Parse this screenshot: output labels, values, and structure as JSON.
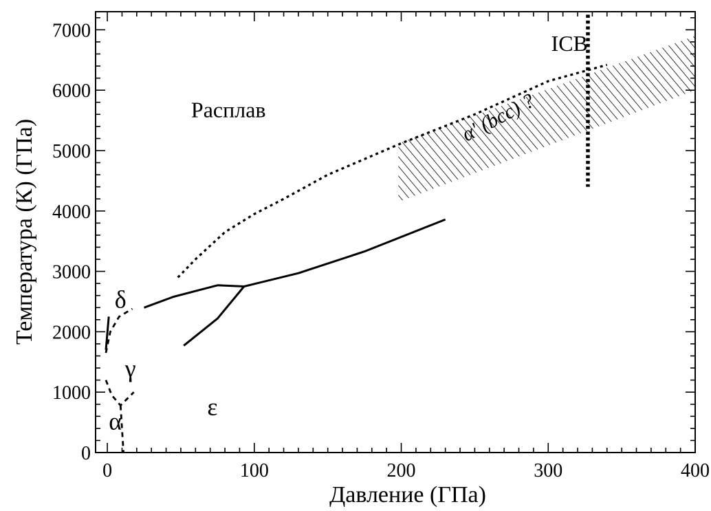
{
  "chart_data": {
    "type": "line",
    "xlabel": "Давление (ГПа)",
    "ylabel": "Температура (К) (ГПа)",
    "xlim": [
      -8,
      400
    ],
    "ylim": [
      0,
      7300
    ],
    "x_major_ticks": [
      0,
      100,
      200,
      300,
      400
    ],
    "x_minor_step": 10,
    "y_major_ticks": [
      0,
      1000,
      2000,
      3000,
      4000,
      5000,
      6000,
      7000
    ],
    "y_minor_step": 200,
    "tick_labels_x": [
      "0",
      "100",
      "200",
      "300",
      "400"
    ],
    "tick_labels_y": [
      "0",
      "1000",
      "2000",
      "3000",
      "4000",
      "5000",
      "6000",
      "7000"
    ],
    "grid": false,
    "series": [
      {
        "style": "dotted",
        "x": [
          48,
          60,
          80,
          100,
          120,
          150,
          200,
          250,
          300,
          340
        ],
        "y": [
          2900,
          3200,
          3650,
          3950,
          4200,
          4600,
          5120,
          5600,
          6150,
          6420
        ]
      },
      {
        "style": "solid",
        "x": [
          25,
          45,
          75,
          93
        ],
        "y": [
          2400,
          2580,
          2770,
          2750
        ]
      },
      {
        "style": "solid",
        "x": [
          93,
          130,
          175,
          230
        ],
        "y": [
          2750,
          2970,
          3330,
          3860
        ]
      },
      {
        "style": "solid",
        "x": [
          52,
          75,
          93
        ],
        "y": [
          1770,
          2220,
          2750
        ]
      },
      {
        "style": "solid",
        "x": [
          -1,
          1
        ],
        "y": [
          1700,
          2250
        ]
      },
      {
        "style": "dashed",
        "x": [
          -1,
          2,
          8,
          17
        ],
        "y": [
          1650,
          2000,
          2250,
          2380
        ]
      },
      {
        "style": "dashed",
        "x": [
          -1,
          3,
          9,
          18
        ],
        "y": [
          1200,
          950,
          780,
          1000
        ]
      },
      {
        "style": "dashed",
        "x": [
          9,
          11
        ],
        "y": [
          780,
          0
        ]
      },
      {
        "style": "dotted-thick",
        "x": [
          327,
          327
        ],
        "y": [
          7250,
          4400
        ]
      }
    ],
    "hatched_region": {
      "x": [
        198,
        198,
        400,
        400
      ],
      "y": [
        4150,
        5120,
        6900,
        6000
      ]
    },
    "annotations": [
      {
        "text": "Расплав",
        "x": 57,
        "y": 5550
      },
      {
        "text": "ICB",
        "x": 302,
        "y": 6650
      },
      {
        "text": "α' (bcc) ?",
        "x": 268,
        "y": 5450
      },
      {
        "text": "δ",
        "x": 5,
        "y": 2400
      },
      {
        "text": "γ",
        "x": 12,
        "y": 1250
      },
      {
        "text": "α",
        "x": 1,
        "y": 380
      },
      {
        "text": "ε",
        "x": 68,
        "y": 620
      }
    ]
  }
}
